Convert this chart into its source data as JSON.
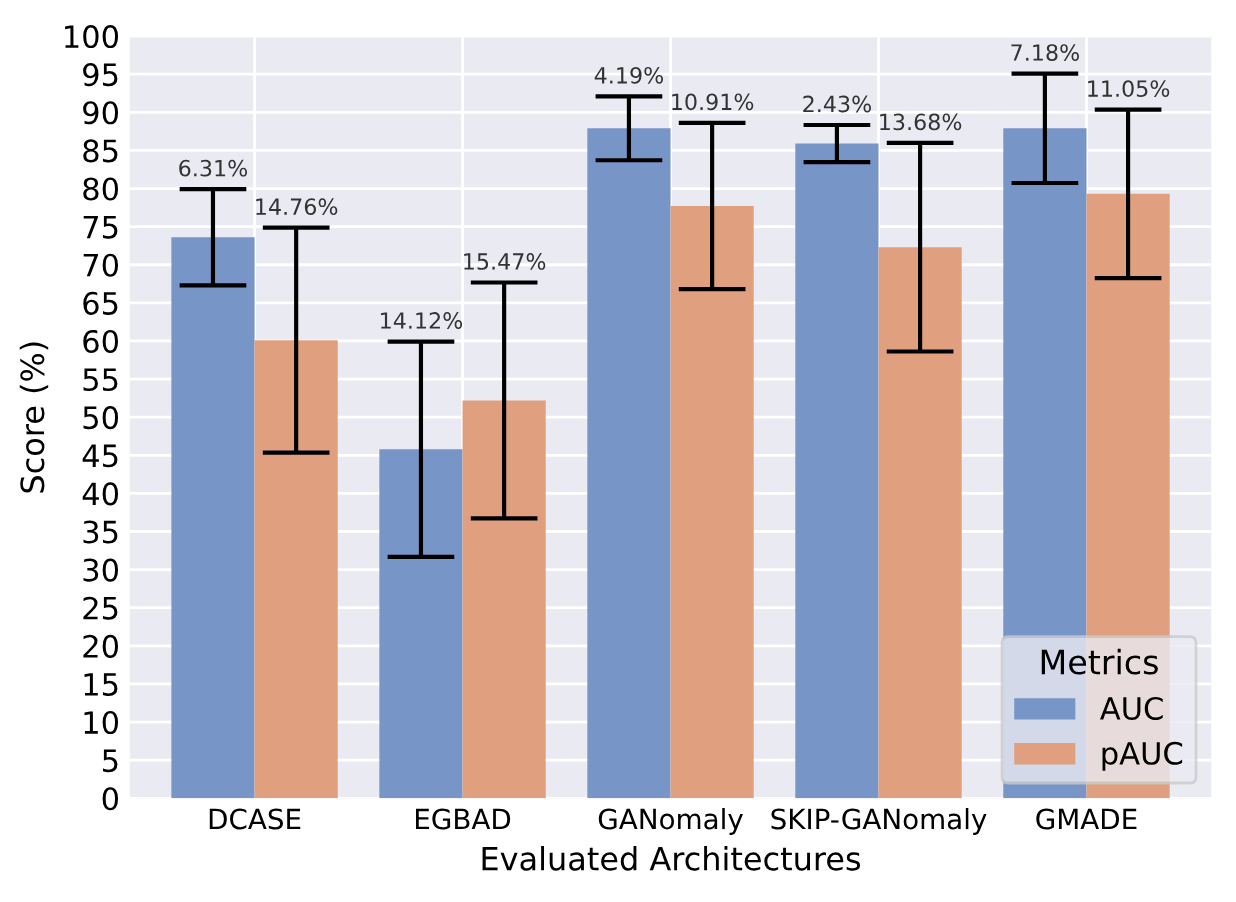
{
  "chart_data": {
    "type": "bar",
    "xlabel": "Evaluated Architectures",
    "ylabel": "Score (%)",
    "legend_title": "Metrics",
    "categories": [
      "DCASE",
      "EGBAD",
      "GANomaly",
      "SKIP-GANomaly",
      "GMADE"
    ],
    "series": [
      {
        "name": "AUC",
        "color": "#7795c7",
        "values": [
          73.6,
          45.8,
          87.9,
          85.9,
          87.9
        ],
        "errors": [
          6.31,
          14.12,
          4.19,
          2.43,
          7.18
        ]
      },
      {
        "name": "pAUC",
        "color": "#e0a07f",
        "values": [
          60.1,
          52.2,
          77.7,
          72.3,
          79.3
        ],
        "errors": [
          14.76,
          15.47,
          10.91,
          13.68,
          11.05
        ]
      }
    ],
    "annotations": [
      {
        "text": "6.31%",
        "x": "DCASE",
        "y": 79.91
      },
      {
        "text": "14.76%",
        "x": "DCASE",
        "y": 74.86
      },
      {
        "text": "14.12%",
        "x": "EGBAD",
        "y": 59.92
      },
      {
        "text": "15.47%",
        "x": "EGBAD",
        "y": 67.67
      },
      {
        "text": "4.19%",
        "x": "GANomaly",
        "y": 92.09
      },
      {
        "text": "10.91%",
        "x": "GANomaly",
        "y": 88.61
      },
      {
        "text": "2.43%",
        "x": "SKIP-GANomaly",
        "y": 88.33
      },
      {
        "text": "13.68%",
        "x": "SKIP-GANomaly",
        "y": 85.98
      },
      {
        "text": "7.18%",
        "x": "GMADE",
        "y": 95.08
      },
      {
        "text": "11.05%",
        "x": "GMADE",
        "y": 90.35
      }
    ],
    "ylim": [
      0,
      100
    ],
    "yticks": [
      0,
      5,
      10,
      15,
      20,
      25,
      30,
      35,
      40,
      45,
      50,
      55,
      60,
      65,
      70,
      75,
      80,
      85,
      90,
      95,
      100
    ],
    "grid": true,
    "legend": "bottom right"
  }
}
